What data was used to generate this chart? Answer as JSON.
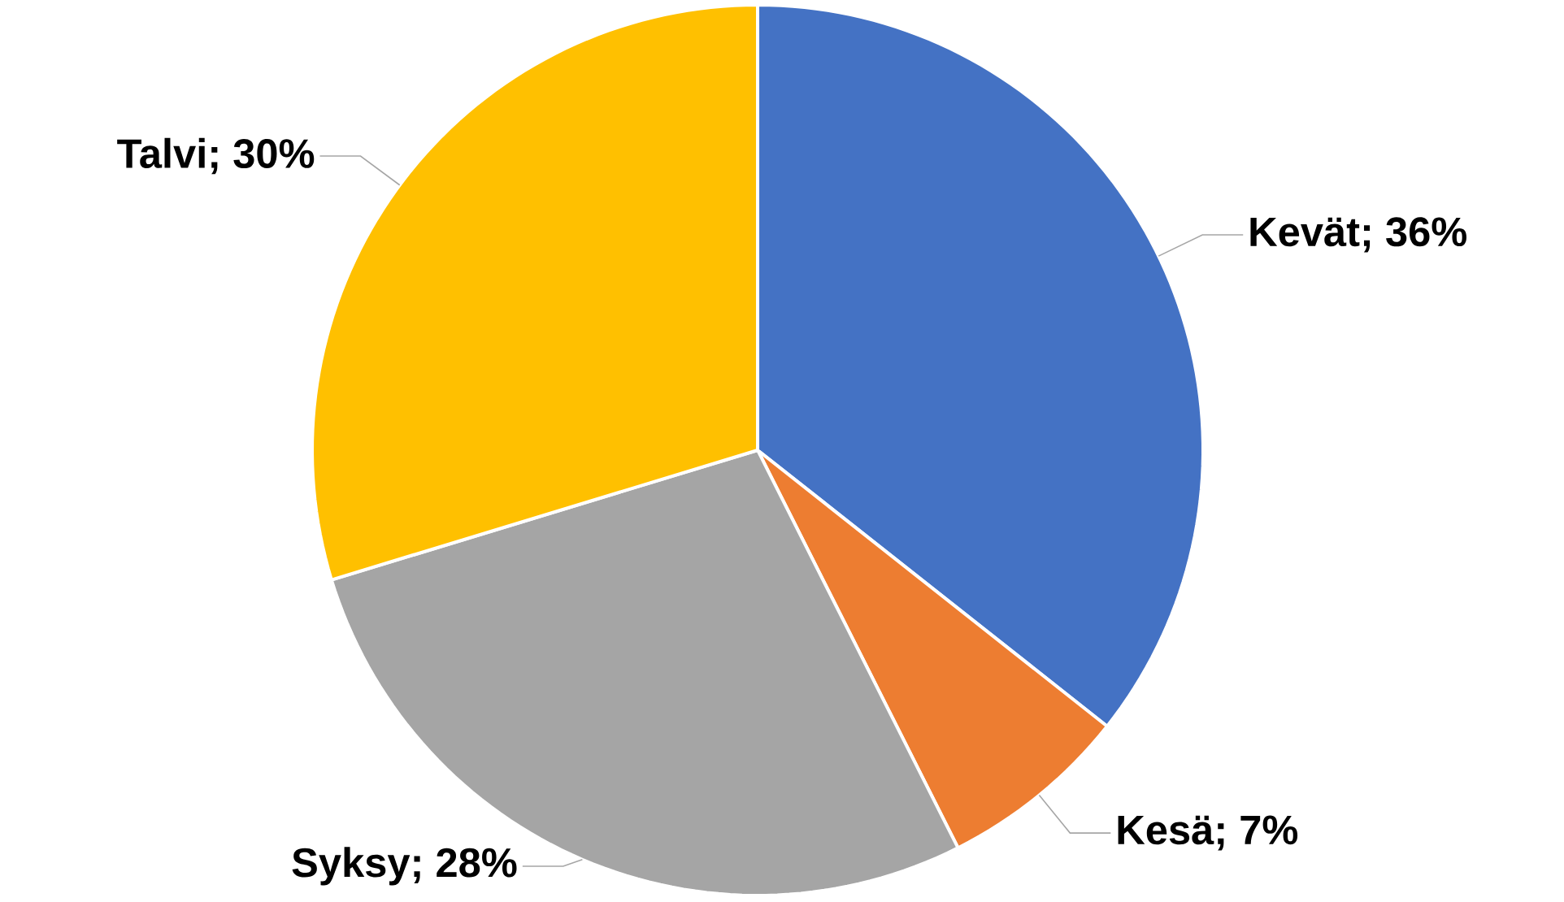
{
  "chart_data": {
    "type": "pie",
    "categories": [
      "Kevät; 36%",
      "Kesä; 7%",
      "Syksy; 28%",
      "Talvi; 30%"
    ],
    "values": [
      36,
      7,
      28,
      30
    ],
    "colors": [
      "#4472c4",
      "#ed7d31",
      "#a5a5a5",
      "#ffc000"
    ]
  }
}
